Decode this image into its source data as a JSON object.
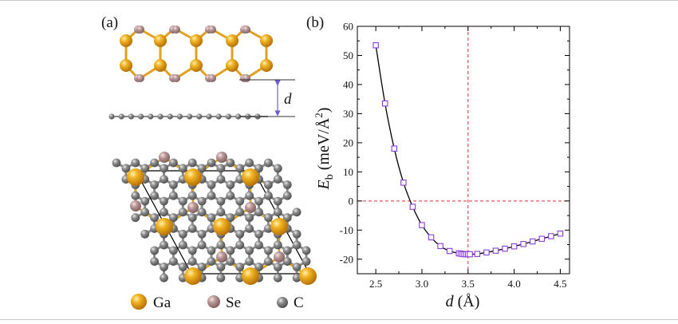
{
  "panels": {
    "a_label": "(a)",
    "b_label": "(b)"
  },
  "structure": {
    "distance_label": "d",
    "legend": [
      {
        "symbol": "Ga",
        "color": "#e09a10"
      },
      {
        "symbol": "Se",
        "color": "#a98686"
      },
      {
        "symbol": "C",
        "color": "#7a7a7a"
      }
    ],
    "bond_colors": {
      "Ga": "#e0a020",
      "Se": "#c7a3a3",
      "C": "#8a8a8a",
      "cell": "#000000",
      "arrow": "#6f5bd6"
    }
  },
  "chart_data": {
    "type": "line",
    "xlabel_italic": "d",
    "xlabel_rest": " (Å)",
    "ylabel_main": "E",
    "ylabel_sub": "b",
    "ylabel_unit": " (meV/Å",
    "ylabel_sup": "2",
    "ylabel_close": ")",
    "xlim": [
      2.3,
      4.6
    ],
    "ylim": [
      -25,
      60
    ],
    "xticks": [
      "2.5",
      "3.0",
      "3.5",
      "4.0",
      "4.5"
    ],
    "yticks": [
      "-20",
      "-10",
      "0",
      "10",
      "20",
      "30",
      "40",
      "50",
      "60"
    ],
    "reference_lines": {
      "x": 3.5,
      "y": 0,
      "color": "#e0303a",
      "style": "dashed"
    },
    "series": [
      {
        "marker": "square-open",
        "marker_color": "#8b3ddc",
        "line_color": "#000000",
        "x": [
          2.5,
          2.6,
          2.7,
          2.8,
          2.9,
          3.0,
          3.1,
          3.2,
          3.3,
          3.4,
          3.42,
          3.44,
          3.46,
          3.48,
          3.5,
          3.52,
          3.6,
          3.7,
          3.8,
          3.9,
          4.0,
          4.1,
          4.2,
          4.3,
          4.4,
          4.5
        ],
        "y": [
          53.5,
          33.5,
          18.0,
          6.3,
          -2.0,
          -8.3,
          -12.5,
          -15.5,
          -17.2,
          -18.0,
          -18.1,
          -18.2,
          -18.3,
          -18.3,
          -18.3,
          -18.3,
          -18.2,
          -17.7,
          -17.1,
          -16.4,
          -15.6,
          -14.8,
          -13.9,
          -13.0,
          -12.1,
          -11.2
        ]
      }
    ]
  }
}
